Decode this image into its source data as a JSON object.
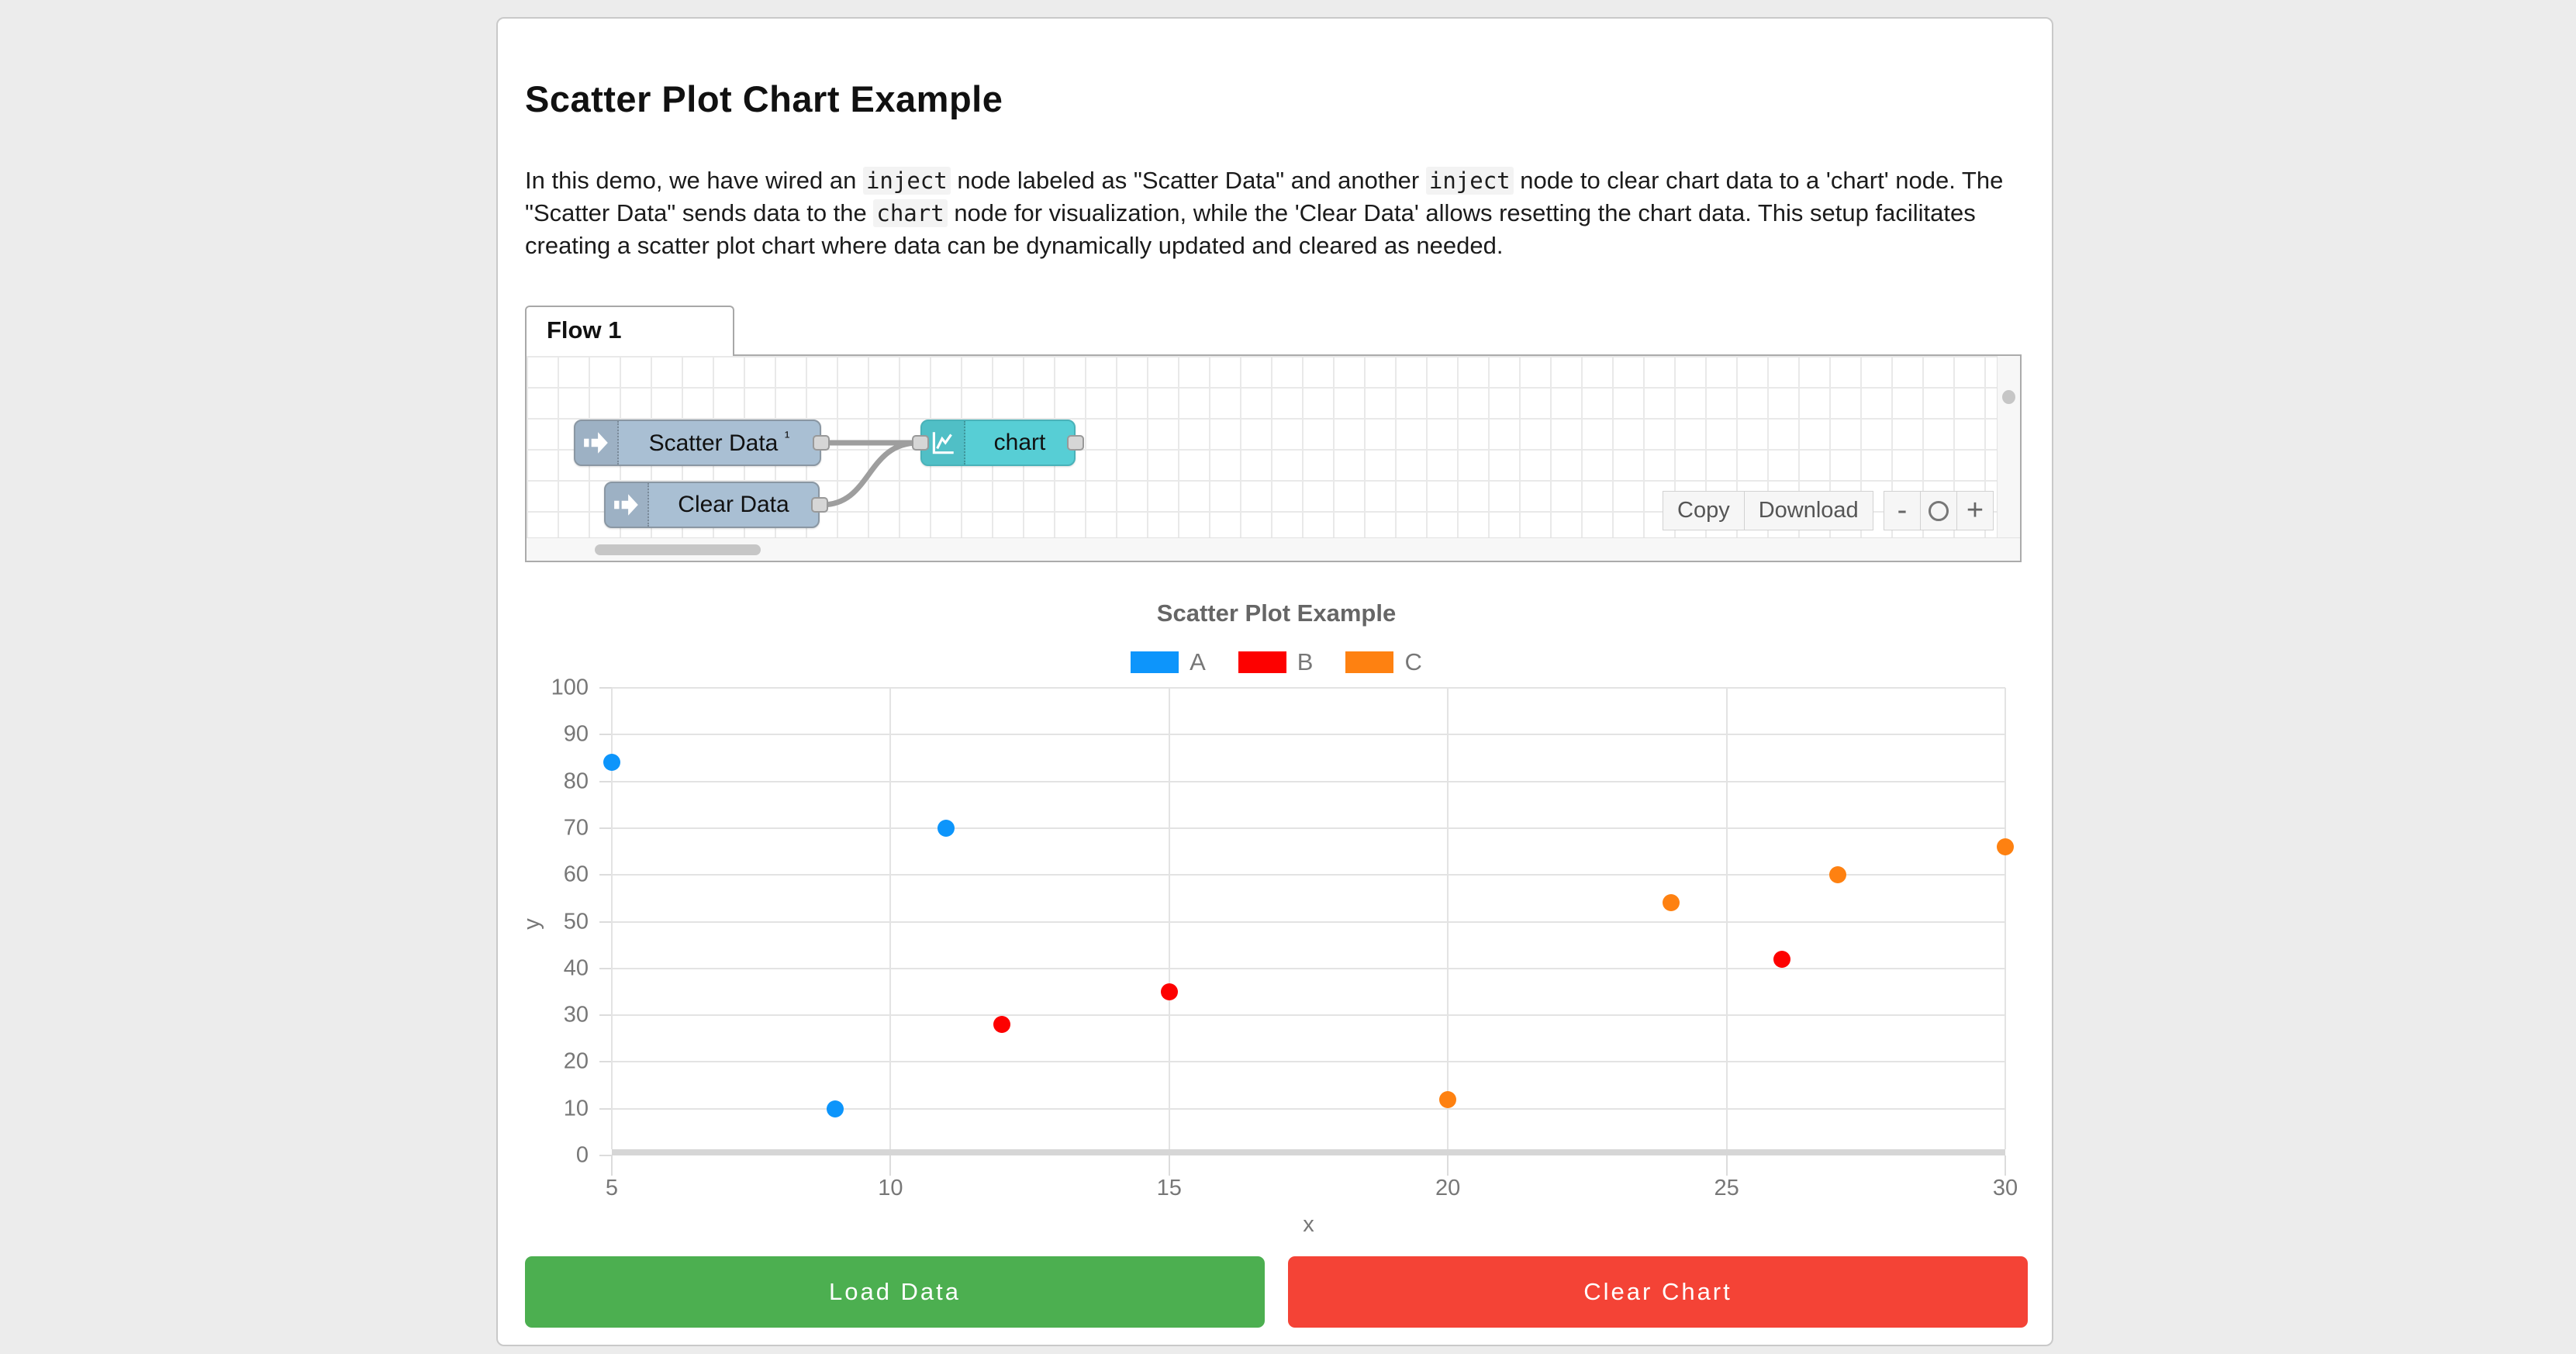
{
  "page": {
    "title": "Scatter Plot Chart Example"
  },
  "description": {
    "segments": [
      {
        "text": "In this demo, we have wired an "
      },
      {
        "code": "inject"
      },
      {
        "text": " node labeled as \"Scatter Data\" and another "
      },
      {
        "code": "inject"
      },
      {
        "text": " node to clear chart data to a 'chart' node. The \"Scatter Data\" sends data to the "
      },
      {
        "code": "chart"
      },
      {
        "text": " node for visualization, while the 'Clear Data' allows resetting the chart data. This setup facilitates creating a scatter plot chart where data can be dynamically updated and cleared as needed."
      }
    ]
  },
  "flow_editor": {
    "tab_label": "Flow 1",
    "nodes": [
      {
        "type": "inject",
        "label": "Scatter Data",
        "badge": "¹"
      },
      {
        "type": "inject",
        "label": "Clear Data",
        "badge": ""
      },
      {
        "type": "chart",
        "label": "chart",
        "badge": ""
      }
    ],
    "toolbar": {
      "copy_label": "Copy",
      "download_label": "Download"
    },
    "zoom_controls": {
      "zoom_out": "-",
      "zoom_reset": "circle",
      "zoom_in": "+"
    }
  },
  "chart_data": {
    "type": "scatter",
    "title": "Scatter Plot Example",
    "xlabel": "x",
    "ylabel": "y",
    "xlim": [
      5,
      30
    ],
    "ylim": [
      0,
      100
    ],
    "x_ticks": [
      5,
      10,
      15,
      20,
      25,
      30
    ],
    "y_ticks": [
      0,
      10,
      20,
      30,
      40,
      50,
      60,
      70,
      80,
      90,
      100
    ],
    "grid": true,
    "legend_position": "top",
    "series": [
      {
        "name": "A",
        "color": "#0d95fb",
        "points": [
          [
            5,
            84
          ],
          [
            9,
            10
          ],
          [
            11,
            70
          ]
        ]
      },
      {
        "name": "B",
        "color": "#fd0100",
        "points": [
          [
            12,
            28
          ],
          [
            15,
            35
          ],
          [
            26,
            42
          ]
        ]
      },
      {
        "name": "C",
        "color": "#fe8111",
        "points": [
          [
            20,
            12
          ],
          [
            24,
            54
          ],
          [
            27,
            60
          ],
          [
            30,
            66
          ]
        ]
      }
    ]
  },
  "actions": {
    "load_label": "Load Data",
    "load_color": "#4caf50",
    "clear_label": "Clear Chart",
    "clear_color": "#f44336"
  }
}
